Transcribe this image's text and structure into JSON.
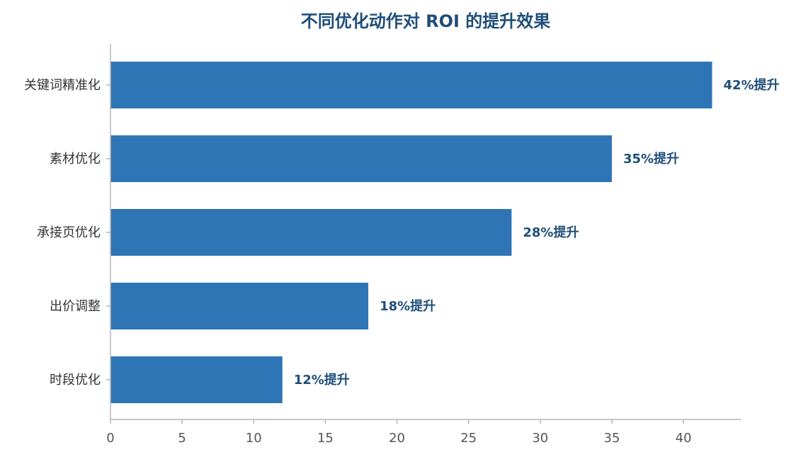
{
  "chart_data": {
    "type": "bar",
    "orientation": "horizontal",
    "title": "不同优化动作对 ROI 的提升效果",
    "xlabel": "",
    "ylabel": "",
    "categories": [
      "关键词精准化",
      "素材优化",
      "承接页优化",
      "出价调整",
      "时段优化"
    ],
    "values": [
      42,
      35,
      28,
      18,
      12
    ],
    "data_labels": [
      "42%提升",
      "35%提升",
      "28%提升",
      "18%提升",
      "12%提升"
    ],
    "xlim": [
      0,
      44
    ],
    "xticks": [
      0,
      5,
      10,
      15,
      20,
      25,
      30,
      35,
      40
    ],
    "grid": false,
    "legend": "none",
    "colors": {
      "bar": "#2e75b6",
      "label": "#1f4e79",
      "axis": "#b5b5b5"
    }
  }
}
